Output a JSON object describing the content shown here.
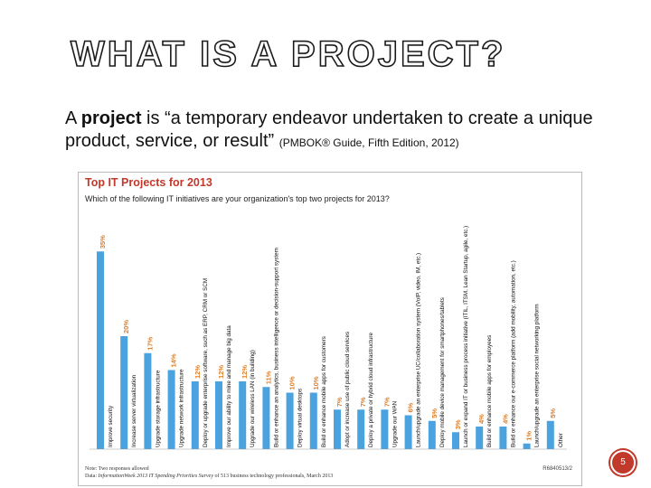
{
  "slide": {
    "title": "WHAT IS A PROJECT?",
    "definition_prefix": "A ",
    "definition_bold": "project",
    "definition_text": " is “a temporary endeavor undertaken to create a unique product, service, or result” ",
    "definition_citation": "(PMBOK® Guide, Fifth Edition, 2012)",
    "page_number": "5"
  },
  "colors": {
    "bar": "#4aa3df",
    "title_red": "#c0392b",
    "value_orange": "#e07b20"
  },
  "chart_data": {
    "type": "bar",
    "title": "Top IT Projects for 2013",
    "question": "Which of the following IT initiatives are your organization's top two projects for 2013?",
    "categories": [
      "Improve security",
      "Increase server virtualization",
      "Upgrade storage infrastructure",
      "Upgrade network infrastructure",
      "Deploy or upgrade enterprise software, such as ERP, CRM or SCM",
      "Improve our ability to mine and manage big data",
      "Upgrade our wireless LAN (in building)",
      "Build or enhance an analytics, business intelligence or decision-support system",
      "Deploy virtual desktops",
      "Build or enhance mobile apps for customers",
      "Adopt or increase use of public cloud services",
      "Deploy a private or hybrid cloud infrastructure",
      "Upgrade our WAN",
      "Launch/upgrade an enterprise UC/collaboration system (VoIP, video, IM, etc.)",
      "Deploy mobile device management for smartphones/tablets",
      "Launch or expand IT or business process initiative (ITIL, ITSM, Lean Startup, agile, etc.)",
      "Build or enhance mobile apps for employees",
      "Build or enhance our e-commerce platform (add mobility, automation, etc.)",
      "Launch/upgrade an enterprise social networking platform",
      "Other"
    ],
    "values": [
      35,
      20,
      17,
      14,
      12,
      12,
      12,
      11,
      10,
      10,
      7,
      7,
      7,
      6,
      5,
      3,
      4,
      4,
      1,
      5
    ],
    "value_labels": [
      "35%",
      "20%",
      "17%",
      "14%",
      "12%",
      "12%",
      "12%",
      "11%",
      "10%",
      "10%",
      "7%",
      "7%",
      "7%",
      "6%",
      "5%",
      "3%",
      "4%",
      "4%",
      "1%",
      "5%"
    ],
    "ylim": [
      0,
      40
    ],
    "note": "Note: Two responses allowed",
    "data_source_label": "Data: ",
    "data_source_title": "InformationWeek 2013 IT Spending Priorities Survey",
    "data_source_rest": " of 513 business technology professionals, March 2013",
    "reference_code": "R6840513/2"
  }
}
